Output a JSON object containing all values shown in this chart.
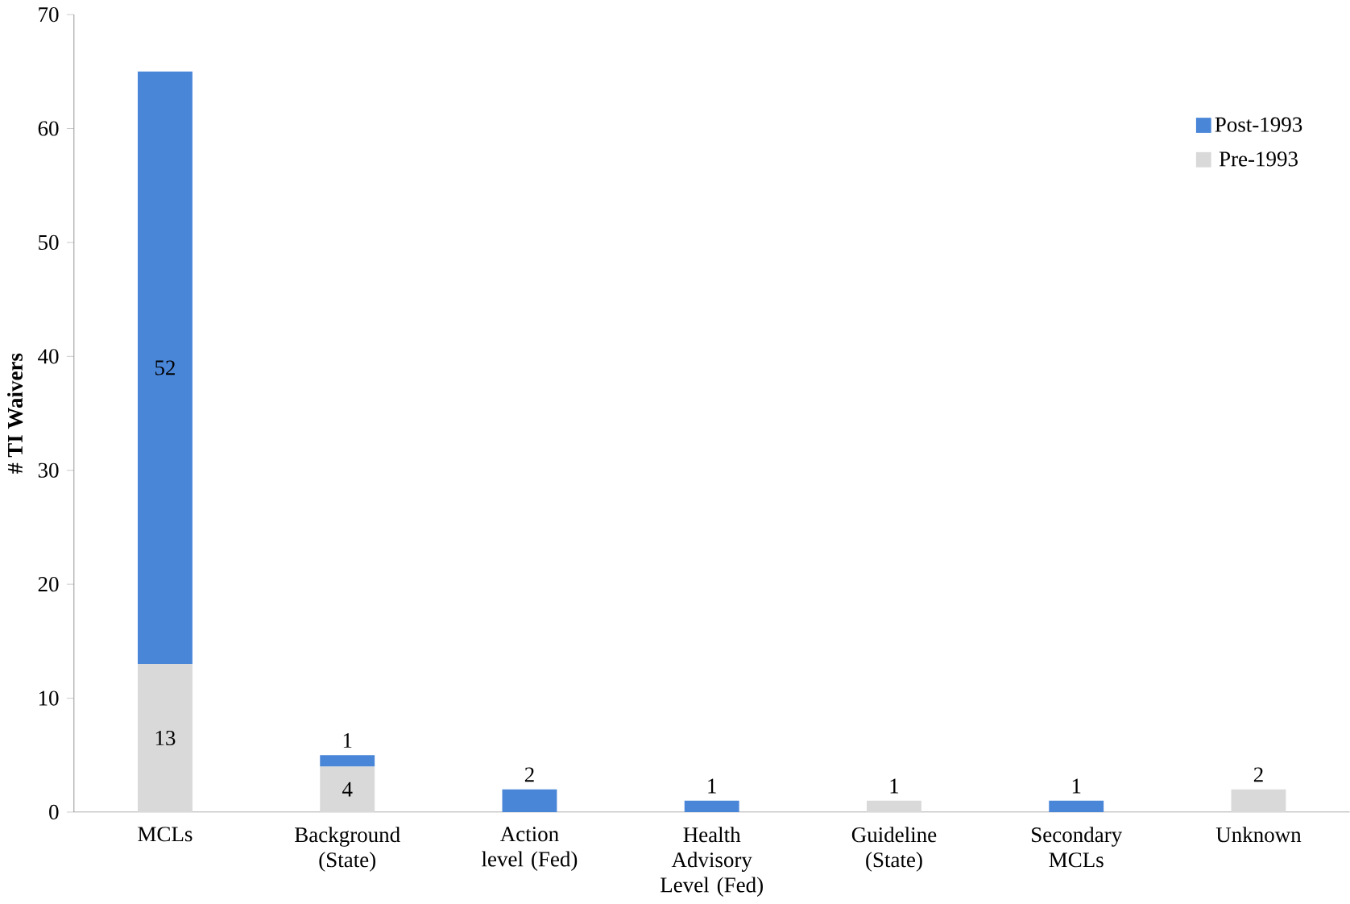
{
  "chart_data": {
    "type": "bar",
    "stacked": true,
    "ylabel": "# TI Waivers",
    "categories": [
      "MCLs",
      "Background (State)",
      "Action level (Fed)",
      "Health Advisory Level (Fed)",
      "Guideline (State)",
      "Secondary MCLs",
      "Unknown"
    ],
    "series": [
      {
        "name": "Pre-1993",
        "color": "#d9d9d9",
        "values": [
          13,
          4,
          0,
          0,
          1,
          0,
          2
        ],
        "value_labels": [
          "13",
          "4",
          null,
          null,
          "1",
          null,
          "2"
        ]
      },
      {
        "name": "Post-1993",
        "color": "#4a86d8",
        "values": [
          52,
          1,
          2,
          1,
          0,
          1,
          0
        ],
        "value_labels": [
          "52",
          "1",
          "2",
          "1",
          null,
          "1",
          null
        ]
      }
    ],
    "ylim": [
      0,
      70
    ],
    "yticks": [
      0,
      10,
      20,
      30,
      40,
      50,
      60,
      70
    ],
    "legend": "top right",
    "grid": false
  }
}
